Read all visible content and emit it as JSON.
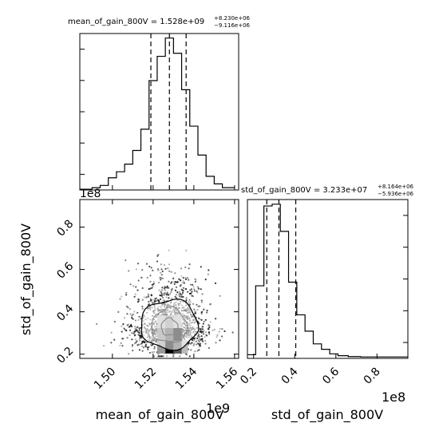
{
  "chart_data": [
    {
      "type": "histogram",
      "panel": "top-left",
      "param": "mean_of_gain_800V",
      "title": {
        "lhs": "mean_of_gain_800V = ",
        "value": "1.528e+09",
        "plus": "+8.230e+06",
        "minus": "−9.116e+06"
      },
      "xlim": [
        1484000000,
        1562000000
      ],
      "bins": [
        [
          1484000000,
          1490000000,
          0.5
        ],
        [
          1490000000,
          1494000000,
          1.5
        ],
        [
          1494000000,
          1498000000,
          3
        ],
        [
          1498000000,
          1502000000,
          8
        ],
        [
          1502000000,
          1506000000,
          12
        ],
        [
          1506000000,
          1510000000,
          17
        ],
        [
          1510000000,
          1514000000,
          26
        ],
        [
          1514000000,
          1518000000,
          40
        ],
        [
          1518000000,
          1522000000,
          72
        ],
        [
          1522000000,
          1526000000,
          88
        ],
        [
          1526000000,
          1530000000,
          100
        ],
        [
          1530000000,
          1534000000,
          90
        ],
        [
          1534000000,
          1538000000,
          66
        ],
        [
          1538000000,
          1542000000,
          42
        ],
        [
          1542000000,
          1546000000,
          23
        ],
        [
          1546000000,
          1550000000,
          9
        ],
        [
          1550000000,
          1554000000,
          4
        ],
        [
          1554000000,
          1560000000,
          1.5
        ]
      ],
      "quantiles": [
        1518900000,
        1528000000,
        1536200000
      ],
      "offset_label": "1e8"
    },
    {
      "type": "scatter+contour",
      "panel": "bottom-left",
      "xlabel": "mean_of_gain_800V",
      "ylabel": "std_of_gain_800V",
      "xlim": [
        1484000000,
        1562000000
      ],
      "ylim": [
        18000000,
        93000000
      ],
      "xticks": [
        1500000000,
        1520000000,
        1540000000,
        1560000000
      ],
      "xticklabels": [
        "1.50",
        "1.52",
        "1.54",
        "1.56"
      ],
      "yticks": [
        20000000,
        40000000,
        60000000,
        80000000
      ],
      "yticklabels": [
        "0.2",
        "0.4",
        "0.6",
        "0.8"
      ],
      "x_offset_label": "1e9",
      "center": [
        1528000000,
        32300000
      ],
      "contour_levels": [
        {
          "rx": 4000000,
          "ry": 4500000
        },
        {
          "rx": 8800000,
          "ry": 9000000
        },
        {
          "rx": 14000000,
          "ry": 13000000
        }
      ]
    },
    {
      "type": "histogram",
      "panel": "bottom-right",
      "param": "std_of_gain_800V",
      "title": {
        "lhs": "std_of_gain_800V = ",
        "value": "3.233e+07",
        "plus": "+8.164e+06",
        "minus": "−5.936e+06"
      },
      "xlabel": "std_of_gain_800V",
      "xlim": [
        17000000,
        95000000
      ],
      "xticks": [
        20000000,
        40000000,
        60000000,
        80000000
      ],
      "xticklabels": [
        "0.2",
        "0.4",
        "0.6",
        "0.8"
      ],
      "x_offset_label": "1e8",
      "bins": [
        [
          17000000,
          21000000,
          2
        ],
        [
          21000000,
          25000000,
          40
        ],
        [
          25000000,
          29000000,
          84
        ],
        [
          29000000,
          33000000,
          85
        ],
        [
          33000000,
          37000000,
          70
        ],
        [
          37000000,
          41000000,
          42
        ],
        [
          41000000,
          45000000,
          24
        ],
        [
          45000000,
          49000000,
          15
        ],
        [
          49000000,
          53000000,
          8
        ],
        [
          53000000,
          57000000,
          5
        ],
        [
          57000000,
          61000000,
          2.5
        ],
        [
          61000000,
          66000000,
          1.5
        ],
        [
          66000000,
          72000000,
          1
        ],
        [
          72000000,
          80000000,
          0.8
        ],
        [
          80000000,
          95000000,
          0.8
        ]
      ],
      "quantiles": [
        26400000,
        32300000,
        40500000
      ]
    }
  ]
}
